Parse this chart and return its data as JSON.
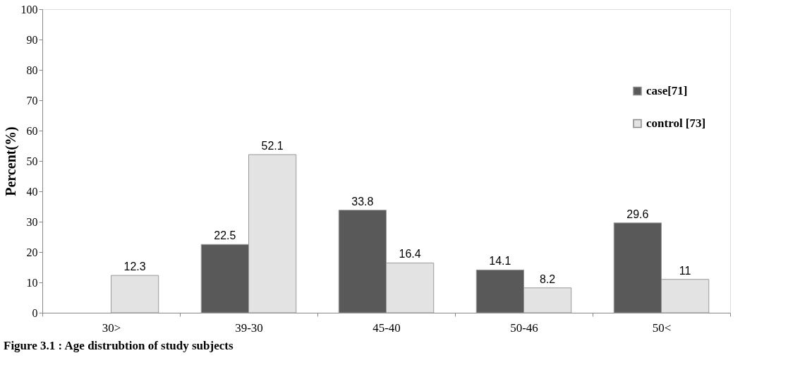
{
  "chart_data": {
    "type": "bar",
    "ylabel": "Percent(%)",
    "categories": [
      "30>",
      "39-30",
      "45-40",
      "50-46",
      "50<"
    ],
    "series": [
      {
        "name": "case[71]",
        "color": "#595959",
        "values": [
          null,
          22.5,
          33.8,
          14.1,
          29.6
        ]
      },
      {
        "name": "control [73]",
        "color": "#e3e3e3",
        "values": [
          12.3,
          52.1,
          16.4,
          8.2,
          11
        ]
      }
    ],
    "ylim": [
      0,
      100
    ],
    "yticks": [
      0,
      10,
      20,
      30,
      40,
      50,
      60,
      70,
      80,
      90,
      100
    ],
    "grid": false,
    "legend": "right",
    "data_labels": true,
    "annotations": [
      "Figure 3.1 : Age distrubtion of study subjects"
    ]
  }
}
